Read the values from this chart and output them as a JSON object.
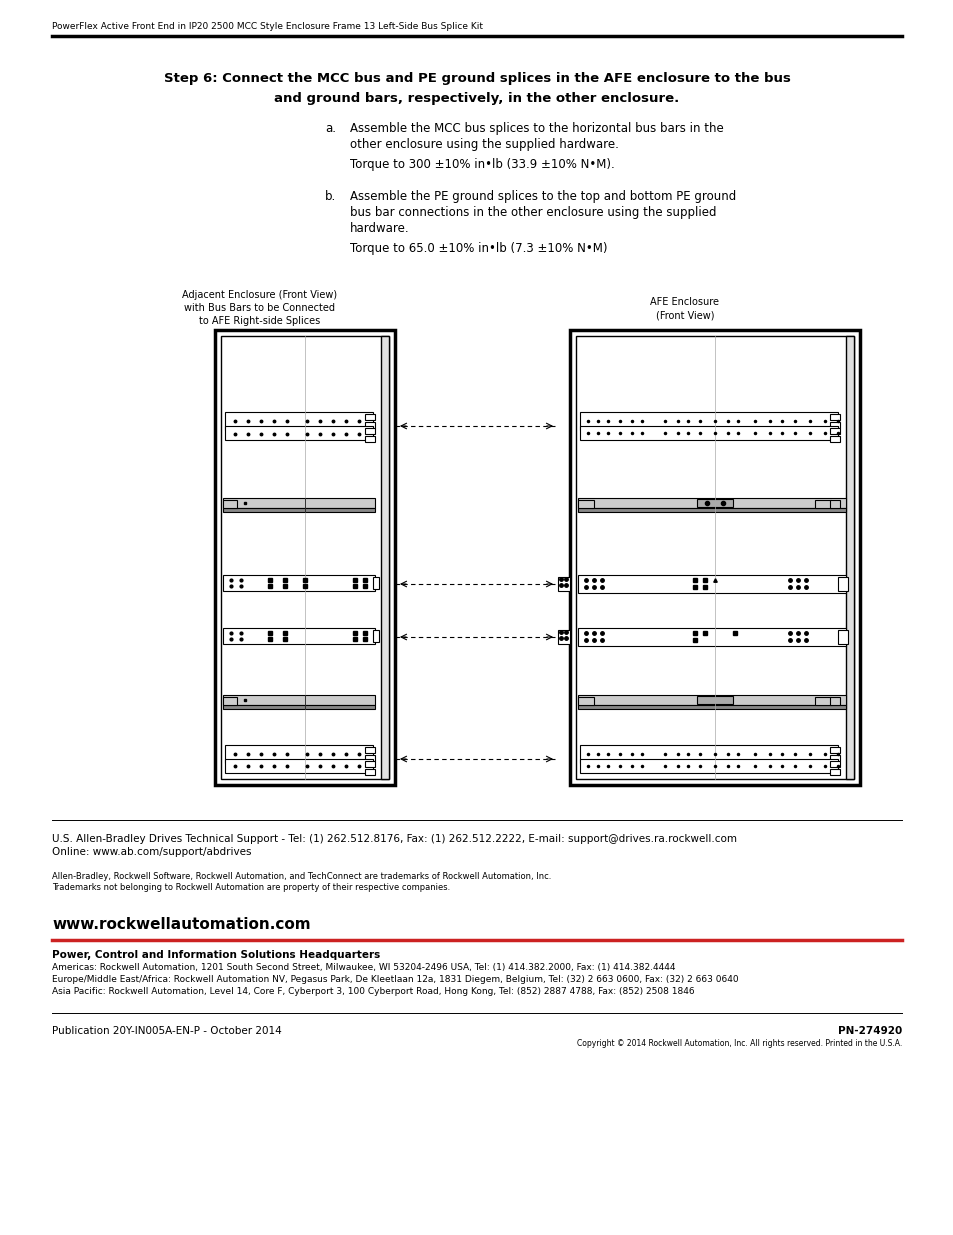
{
  "bg_color": "#ffffff",
  "header_text": "PowerFlex Active Front End in IP20 2500 MCC Style Enclosure Frame 13 Left-Side Bus Splice Kit",
  "title_line1": "Step 6: Connect the MCC bus and PE ground splices in the AFE enclosure to the bus",
  "title_line2": "and ground bars, respectively, in the other enclosure.",
  "item_a_label": "a.",
  "item_a_line1": "Assemble the MCC bus splices to the horizontal bus bars in the",
  "item_a_line2": "other enclosure using the supplied hardware.",
  "item_a_torque": "Torque to 300 ±10% in•lb (33.9 ±10% N•M).",
  "item_b_label": "b.",
  "item_b_line1": "Assemble the PE ground splices to the top and bottom PE ground",
  "item_b_line2": "bus bar connections in the other enclosure using the supplied",
  "item_b_line3": "hardware.",
  "item_b_torque": "Torque to 65.0 ±10% in•lb (7.3 ±10% N•M)",
  "label_left_line1": "Adjacent Enclosure (Front View)",
  "label_left_line2": "with Bus Bars to be Connected",
  "label_left_line3": "to AFE Right-side Splices",
  "label_right_line1": "AFE Enclosure",
  "label_right_line2": "(Front View)",
  "support_line1": "U.S. Allen-Bradley Drives Technical Support - Tel: (1) 262.512.8176, Fax: (1) 262.512.2222, E-mail: support@drives.ra.rockwell.com",
  "support_line2": "Online: www.ab.com/support/abdrives",
  "trademark_line1": "Allen-Bradley, Rockwell Software, Rockwell Automation, and TechConnect are trademarks of Rockwell Automation, Inc.",
  "trademark_line2": "Trademarks not belonging to Rockwell Automation are property of their respective companies.",
  "website": "www.rockwellautomation.com",
  "hq_title": "Power, Control and Information Solutions Headquarters",
  "americas": "Americas: Rockwell Automation, 1201 South Second Street, Milwaukee, WI 53204-2496 USA, Tel: (1) 414.382.2000, Fax: (1) 414.382.4444",
  "europe": "Europe/Middle East/Africa: Rockwell Automation NV, Pegasus Park, De Kleetlaan 12a, 1831 Diegem, Belgium, Tel: (32) 2 663 0600, Fax: (32) 2 663 0640",
  "asia": "Asia Pacific: Rockwell Automation, Level 14, Core F, Cyberport 3, 100 Cyberport Road, Hong Kong, Tel: (852) 2887 4788, Fax: (852) 2508 1846",
  "publication": "Publication 20Y-IN005A-EN-P - October 2014",
  "pn": "PN-274920",
  "copyright": "Copyright © 2014 Rockwell Automation, Inc. All rights reserved. Printed in the U.S.A."
}
